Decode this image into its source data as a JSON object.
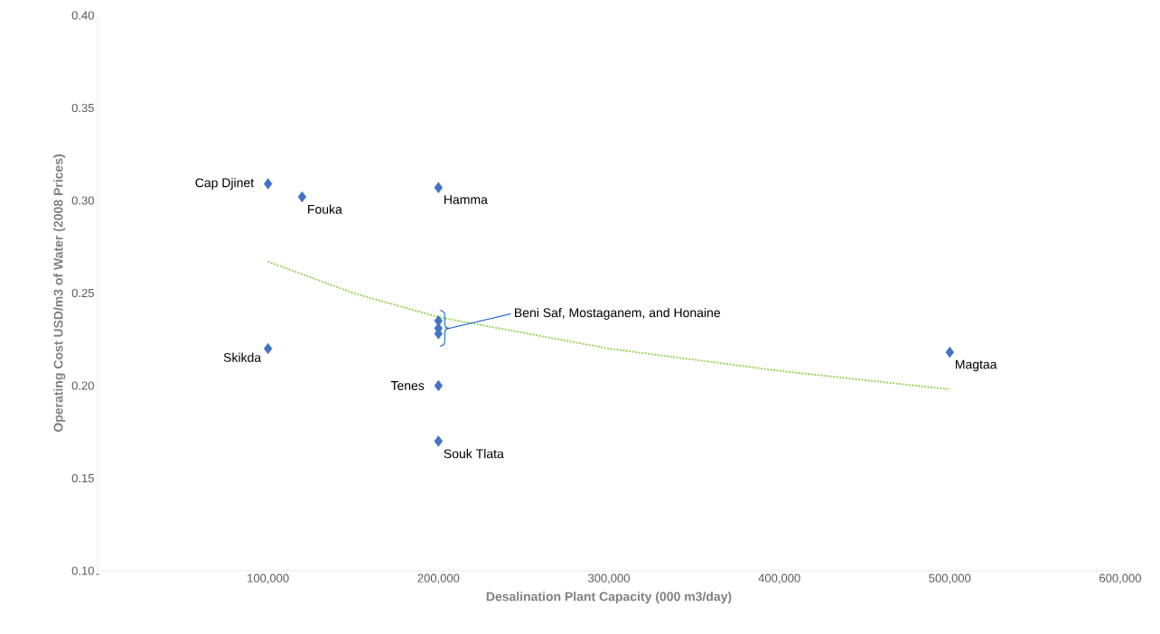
{
  "chart_data": {
    "type": "scatter",
    "xlabel": "Desalination Plant Capacity (000 m3/day)",
    "ylabel": "Operating Cost USD/m3 of Water (2008 Prices)",
    "marker": "diamond",
    "grid": false,
    "xlim": [
      0,
      600000
    ],
    "ylim": [
      0.1,
      0.4
    ],
    "xticks": [
      {
        "value": 0,
        "label": "-"
      },
      {
        "value": 100000,
        "label": "100,000"
      },
      {
        "value": 200000,
        "label": "200,000"
      },
      {
        "value": 300000,
        "label": "300,000"
      },
      {
        "value": 400000,
        "label": "400,000"
      },
      {
        "value": 500000,
        "label": "500,000"
      },
      {
        "value": 600000,
        "label": "600,000"
      }
    ],
    "yticks": [
      {
        "value": 0.1,
        "label": "0.10"
      },
      {
        "value": 0.15,
        "label": "0.15"
      },
      {
        "value": 0.2,
        "label": "0.20"
      },
      {
        "value": 0.25,
        "label": "0.25"
      },
      {
        "value": 0.3,
        "label": "0.30"
      },
      {
        "value": 0.35,
        "label": "0.35"
      },
      {
        "value": 0.4,
        "label": "0.40"
      }
    ],
    "series": [
      {
        "color": "#4472c4",
        "x": [
          100000,
          120000,
          200000,
          200000,
          200000,
          200000,
          100000,
          200000,
          200000,
          500000
        ],
        "values": [
          0.309,
          0.302,
          0.307,
          0.235,
          0.231,
          0.228,
          0.22,
          0.2,
          0.17,
          0.218
        ]
      },
      {
        "type": "line",
        "color": "#92d050",
        "line_style": "dotted",
        "marker": "none",
        "x": [
          100000,
          150000,
          200000,
          300000,
          400000,
          500000
        ],
        "values": [
          0.267,
          0.25,
          0.237,
          0.22,
          0.208,
          0.198
        ]
      }
    ],
    "annotations": [
      {
        "text": "Cap Djinet",
        "x": 100000,
        "y": 0.309
      },
      {
        "text": "Fouka",
        "x": 120000,
        "y": 0.302
      },
      {
        "text": "Hamma",
        "x": 200000,
        "y": 0.307
      },
      "Beni Saf, Mostaganem, and Honaine",
      {
        "text": "Skikda",
        "x": 100000,
        "y": 0.22
      },
      {
        "text": "Tenes",
        "x": 200000,
        "y": 0.2
      },
      {
        "text": "Souk Tlata",
        "x": 200000,
        "y": 0.17
      },
      {
        "text": "Magtaa",
        "x": 500000,
        "y": 0.218
      }
    ]
  }
}
